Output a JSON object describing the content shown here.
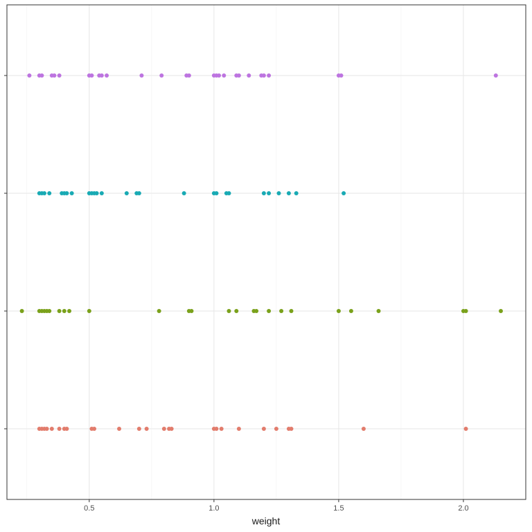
{
  "chart_data": {
    "type": "scatter",
    "title": "",
    "xlabel": "weight",
    "ylabel": "",
    "xlim": [
      0.17,
      2.25
    ],
    "x_ticks": [
      0.5,
      1.0,
      1.5,
      2.0
    ],
    "x_tick_labels": [
      "0.5",
      "1.0",
      "1.5",
      "2.0"
    ],
    "y_tick_labels": [
      "",
      "",
      "",
      ""
    ],
    "grid": true,
    "legend": "none",
    "series": [
      {
        "color": "#e27c6c",
        "level": 1,
        "x": [
          0.3,
          0.31,
          0.32,
          0.33,
          0.35,
          0.38,
          0.4,
          0.41,
          0.51,
          0.52,
          0.62,
          0.7,
          0.73,
          0.8,
          0.82,
          0.83,
          1.0,
          1.01,
          1.03,
          1.1,
          1.2,
          1.25,
          1.3,
          1.31,
          1.6,
          2.01
        ]
      },
      {
        "color": "#7aa11b",
        "level": 2,
        "x": [
          0.23,
          0.3,
          0.31,
          0.32,
          0.33,
          0.34,
          0.38,
          0.4,
          0.42,
          0.5,
          0.78,
          0.9,
          0.91,
          1.06,
          1.09,
          1.16,
          1.17,
          1.22,
          1.27,
          1.31,
          1.5,
          1.55,
          1.66,
          2.0,
          2.01,
          2.15
        ]
      },
      {
        "color": "#19aab4",
        "level": 3,
        "x": [
          0.3,
          0.31,
          0.32,
          0.34,
          0.39,
          0.4,
          0.41,
          0.43,
          0.5,
          0.51,
          0.52,
          0.53,
          0.55,
          0.65,
          0.69,
          0.7,
          0.88,
          1.0,
          1.01,
          1.05,
          1.06,
          1.2,
          1.22,
          1.26,
          1.3,
          1.33,
          1.52
        ]
      },
      {
        "color": "#bd74e0",
        "level": 4,
        "x": [
          0.26,
          0.3,
          0.31,
          0.35,
          0.36,
          0.38,
          0.5,
          0.51,
          0.54,
          0.55,
          0.57,
          0.71,
          0.79,
          0.89,
          0.9,
          1.0,
          1.01,
          1.02,
          1.04,
          1.09,
          1.1,
          1.14,
          1.19,
          1.2,
          1.22,
          1.5,
          1.51,
          2.13
        ]
      }
    ]
  }
}
